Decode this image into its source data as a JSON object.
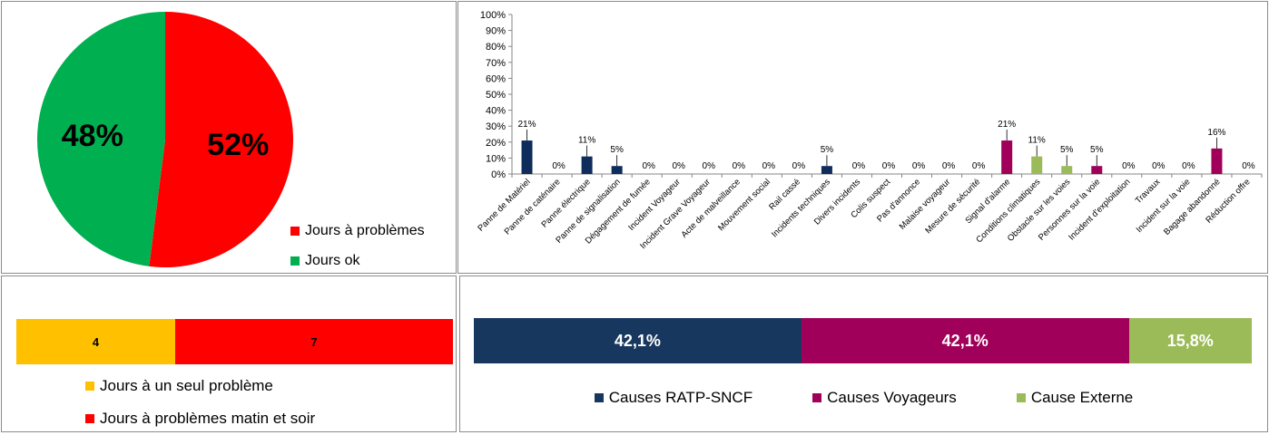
{
  "chart_data": [
    {
      "type": "pie",
      "slices": [
        {
          "label": "Jours à problèmes",
          "value": 52,
          "display": "52%",
          "color": "#ff0000"
        },
        {
          "label": "Jours ok",
          "value": 48,
          "display": "48%",
          "color": "#00b050"
        }
      ]
    },
    {
      "type": "bar",
      "categories": [
        "Panne de Matériel",
        "Panne de caténaire",
        "Panne électrique",
        "Panne de signalisation",
        "Dégagement de fumée",
        "Incident Voyageur",
        "Incident Grave Voyageur",
        "Acte de malveillance",
        "Mouvement social",
        "Rail cassé",
        "Incidents techniques",
        "Divers incidents",
        "Colis suspect",
        "Pas d'annonce",
        "Malaise voyageur",
        "Mesure de sécurité",
        "Signal d'alarme",
        "Conditions climatiques",
        "Obstacle sur les voies",
        "Personnes sur la voie",
        "Incident d'exploitation",
        "Travaux",
        "Incident sur la voie",
        "Bagage abandonné",
        "Réduction offre"
      ],
      "values": [
        21,
        0,
        11,
        5,
        0,
        0,
        0,
        0,
        0,
        0,
        5,
        0,
        0,
        0,
        0,
        0,
        21,
        11,
        5,
        5,
        0,
        0,
        0,
        16,
        0
      ],
      "labels": [
        "21%",
        "0%",
        "11%",
        "5%",
        "0%",
        "0%",
        "0%",
        "0%",
        "0%",
        "0%",
        "5%",
        "0%",
        "0%",
        "0%",
        "0%",
        "0%",
        "21%",
        "11%",
        "5%",
        "5%",
        "0%",
        "0%",
        "0%",
        "16%",
        "0%"
      ],
      "colors": [
        "#0f2d5c",
        "#0f2d5c",
        "#0f2d5c",
        "#0f2d5c",
        "#0f2d5c",
        "#a0005a",
        "#a0005a",
        "#a0005a",
        "#9bbb59",
        "#0f2d5c",
        "#0f2d5c",
        "#0f2d5c",
        "#a0005a",
        "#0f2d5c",
        "#a0005a",
        "#0f2d5c",
        "#a0005a",
        "#9bbb59",
        "#9bbb59",
        "#a0005a",
        "#0f2d5c",
        "#0f2d5c",
        "#0f2d5c",
        "#a0005a",
        "#0f2d5c"
      ],
      "ylim": [
        0,
        100
      ],
      "yticks": [
        "0%",
        "10%",
        "20%",
        "30%",
        "40%",
        "50%",
        "60%",
        "70%",
        "80%",
        "90%",
        "100%"
      ],
      "grid": false
    },
    {
      "type": "bar",
      "orientation": "horizontal-stacked",
      "segments": [
        {
          "label": "Jours à un seul problème",
          "value": 4,
          "display": "4",
          "color": "#ffc000"
        },
        {
          "label": "Jours à problèmes matin et soir",
          "value": 7,
          "display": "7",
          "color": "#ff0000"
        }
      ]
    },
    {
      "type": "bar",
      "orientation": "horizontal-stacked",
      "segments": [
        {
          "label": "Causes RATP-SNCF",
          "value": 42.1,
          "display": "42,1%",
          "color": "#17375e"
        },
        {
          "label": "Causes Voyageurs",
          "value": 42.1,
          "display": "42,1%",
          "color": "#a0005a"
        },
        {
          "label": "Cause Externe",
          "value": 15.8,
          "display": "15,8%",
          "color": "#9bbb59"
        }
      ]
    }
  ]
}
